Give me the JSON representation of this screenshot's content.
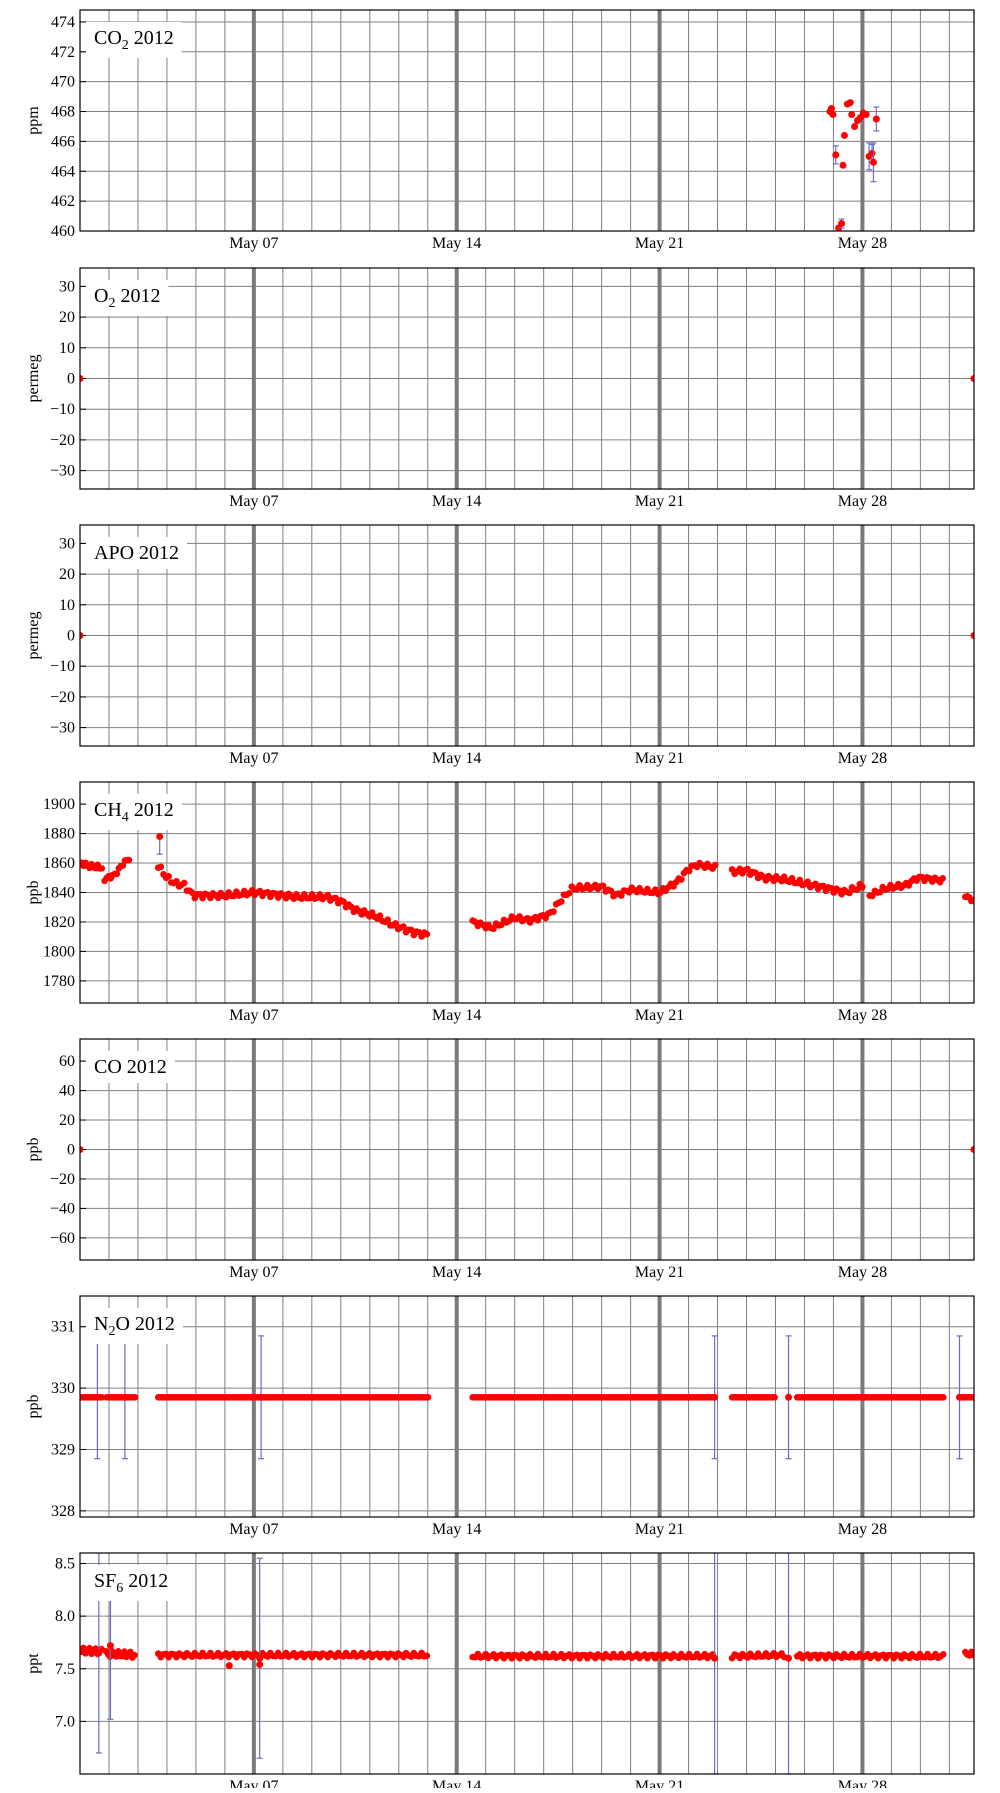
{
  "x_tick_labels": [
    "May 07",
    "May 14",
    "May 21",
    "May 28"
  ],
  "colors": {
    "marker": "#ff0000",
    "error_bar": "#6a6acd",
    "grid": "#808080",
    "week_line": "#7a7a7a",
    "frame": "#000000"
  },
  "chart_data": [
    {
      "type": "scatter",
      "title_main": "CO",
      "title_sub": "2",
      "title_tail": " 2012",
      "ylabel": "ppm",
      "xlim": [
        1.0,
        31.85
      ],
      "ylim": [
        460,
        474.8
      ],
      "yticks": [
        460,
        462,
        464,
        466,
        468,
        470,
        472,
        474
      ],
      "ytick_labels": [
        "460",
        "462",
        "464",
        "466",
        "468",
        "470",
        "472",
        "474"
      ],
      "xticks": [
        7,
        14,
        21,
        28
      ],
      "grid": true,
      "points": [
        {
          "x": 26.88,
          "y": 468.0
        },
        {
          "x": 26.93,
          "y": 468.2
        },
        {
          "x": 26.98,
          "y": 467.8
        },
        {
          "x": 27.08,
          "y": 465.1,
          "err": 0.6
        },
        {
          "x": 27.18,
          "y": 460.2
        },
        {
          "x": 27.28,
          "y": 460.5,
          "err": 0.3
        },
        {
          "x": 27.33,
          "y": 464.4
        },
        {
          "x": 27.38,
          "y": 466.4
        },
        {
          "x": 27.48,
          "y": 468.5
        },
        {
          "x": 27.58,
          "y": 468.6
        },
        {
          "x": 27.63,
          "y": 467.8
        },
        {
          "x": 27.73,
          "y": 467.0
        },
        {
          "x": 27.83,
          "y": 467.4
        },
        {
          "x": 27.93,
          "y": 467.6
        },
        {
          "x": 28.03,
          "y": 467.9
        },
        {
          "x": 28.13,
          "y": 467.8
        },
        {
          "x": 28.23,
          "y": 465.0,
          "err": 0.9
        },
        {
          "x": 28.33,
          "y": 465.2,
          "err": 0.6
        },
        {
          "x": 28.38,
          "y": 464.6,
          "err": 1.3
        },
        {
          "x": 28.48,
          "y": 467.5,
          "err": 0.8
        }
      ]
    },
    {
      "type": "scatter",
      "title_main": "O",
      "title_sub": "2",
      "title_tail": " 2012",
      "ylabel": "permeg",
      "xlim": [
        1.0,
        31.85
      ],
      "ylim": [
        -36,
        36
      ],
      "yticks": [
        -30,
        -20,
        -10,
        0,
        10,
        20,
        30
      ],
      "ytick_labels": [
        "−30",
        "−20",
        "−10",
        "0",
        "10",
        "20",
        "30"
      ],
      "xticks": [
        7,
        14,
        21,
        28
      ],
      "grid": true,
      "points": [
        {
          "x": 1.0,
          "y": 0
        },
        {
          "x": 31.85,
          "y": 0
        }
      ]
    },
    {
      "type": "scatter",
      "title_main": "APO 2012",
      "title_sub": "",
      "title_tail": "",
      "ylabel": "permeg",
      "xlim": [
        1.0,
        31.85
      ],
      "ylim": [
        -36,
        36
      ],
      "yticks": [
        -30,
        -20,
        -10,
        0,
        10,
        20,
        30
      ],
      "ytick_labels": [
        "−30",
        "−20",
        "−10",
        "0",
        "10",
        "20",
        "30"
      ],
      "xticks": [
        7,
        14,
        21,
        28
      ],
      "grid": true,
      "points": [
        {
          "x": 1.0,
          "y": 0
        },
        {
          "x": 31.85,
          "y": 0
        }
      ]
    },
    {
      "type": "scatter",
      "title_main": "CH",
      "title_sub": "4",
      "title_tail": " 2012",
      "ylabel": "ppb",
      "xlim": [
        1.0,
        31.85
      ],
      "ylim": [
        1765,
        1915
      ],
      "yticks": [
        1780,
        1800,
        1820,
        1840,
        1860,
        1880,
        1900
      ],
      "ytick_labels": [
        "1780",
        "1800",
        "1820",
        "1840",
        "1860",
        "1880",
        "1900"
      ],
      "xticks": [
        7,
        14,
        21,
        28
      ],
      "grid": true,
      "series": [
        {
          "x_start": 1.05,
          "x_end": 1.75,
          "step": 0.07,
          "trend": [
            [
              1.05,
              1860
            ],
            [
              1.3,
              1858
            ],
            [
              1.75,
              1857
            ]
          ],
          "amp": 1.5
        },
        {
          "x_start": 1.85,
          "x_end": 2.75,
          "step": 0.07,
          "trend": [
            [
              1.85,
              1849
            ],
            [
              2.2,
              1852
            ],
            [
              2.5,
              1860
            ],
            [
              2.75,
              1864
            ]
          ],
          "amp": 1.2
        },
        {
          "x_start": 3.7,
          "x_end": 13.05,
          "step": 0.09,
          "trend": [
            [
              3.7,
              1858
            ],
            [
              4.0,
              1850
            ],
            [
              4.3,
              1846
            ],
            [
              4.6,
              1845
            ],
            [
              4.9,
              1838
            ],
            [
              6.0,
              1838
            ],
            [
              7.0,
              1840
            ],
            [
              8.5,
              1837
            ],
            [
              9.5,
              1837
            ],
            [
              10.0,
              1834
            ],
            [
              10.5,
              1828
            ],
            [
              11.2,
              1824
            ],
            [
              11.8,
              1818
            ],
            [
              12.5,
              1813
            ],
            [
              13.05,
              1811
            ]
          ],
          "amp": 1.8
        },
        {
          "x_start": 14.55,
          "x_end": 22.95,
          "step": 0.09,
          "trend": [
            [
              14.55,
              1820
            ],
            [
              15.2,
              1816
            ],
            [
              16.0,
              1823
            ],
            [
              16.5,
              1821
            ],
            [
              17.2,
              1825
            ],
            [
              17.6,
              1835
            ],
            [
              18.0,
              1843
            ],
            [
              19.0,
              1844
            ],
            [
              19.5,
              1838
            ],
            [
              20.0,
              1842
            ],
            [
              20.5,
              1841
            ],
            [
              21.0,
              1840
            ],
            [
              21.6,
              1847
            ],
            [
              22.0,
              1856
            ],
            [
              22.3,
              1859
            ],
            [
              22.95,
              1857
            ]
          ],
          "amp": 1.6
        },
        {
          "x_start": 23.5,
          "x_end": 28.05,
          "step": 0.09,
          "trend": [
            [
              23.5,
              1854
            ],
            [
              24.0,
              1855
            ],
            [
              24.6,
              1850
            ],
            [
              25.3,
              1849
            ],
            [
              26.5,
              1844
            ],
            [
              27.4,
              1840
            ],
            [
              28.05,
              1845
            ]
          ],
          "amp": 1.8
        },
        {
          "x_start": 28.25,
          "x_end": 30.85,
          "step": 0.09,
          "trend": [
            [
              28.25,
              1838
            ],
            [
              28.8,
              1843
            ],
            [
              29.5,
              1845
            ],
            [
              29.9,
              1850
            ],
            [
              30.85,
              1848
            ]
          ],
          "amp": 1.6
        },
        {
          "x_start": 31.55,
          "x_end": 31.85,
          "step": 0.07,
          "trend": [
            [
              31.55,
              1838
            ],
            [
              31.85,
              1834
            ]
          ],
          "amp": 1.0
        }
      ],
      "points": [
        {
          "x": 3.75,
          "y": 1878,
          "err_low": 12
        }
      ]
    },
    {
      "type": "scatter",
      "title_main": "CO 2012",
      "title_sub": "",
      "title_tail": "",
      "ylabel": "ppb",
      "xlim": [
        1.0,
        31.85
      ],
      "ylim": [
        -75,
        75
      ],
      "yticks": [
        -60,
        -40,
        -20,
        0,
        20,
        40,
        60
      ],
      "ytick_labels": [
        "−60",
        "−40",
        "−20",
        "0",
        "20",
        "40",
        "60"
      ],
      "xticks": [
        7,
        14,
        21,
        28
      ],
      "grid": true,
      "points": [
        {
          "x": 1.0,
          "y": 0
        },
        {
          "x": 31.85,
          "y": 0
        }
      ]
    },
    {
      "type": "scatter",
      "title_main": "N",
      "title_sub": "2",
      "title_tail": "O 2012",
      "ylabel": "ppb",
      "xlim": [
        1.0,
        31.85
      ],
      "ylim": [
        327.9,
        331.5
      ],
      "yticks": [
        328,
        329,
        330,
        331
      ],
      "ytick_labels": [
        "328",
        "329",
        "330",
        "331"
      ],
      "xticks": [
        7,
        14,
        21,
        28
      ],
      "grid": true,
      "series": [
        {
          "x_start": 1.05,
          "x_end": 1.8,
          "step": 0.07,
          "trend": [
            [
              1.05,
              329.85
            ],
            [
              1.8,
              329.85
            ]
          ],
          "amp": 0
        },
        {
          "x_start": 1.92,
          "x_end": 2.95,
          "step": 0.07,
          "trend": [
            [
              1.92,
              329.85
            ],
            [
              2.95,
              329.85
            ]
          ],
          "amp": 0
        },
        {
          "x_start": 3.7,
          "x_end": 13.05,
          "step": 0.07,
          "trend": [
            [
              3.7,
              329.85
            ],
            [
              13.05,
              329.85
            ]
          ],
          "amp": 0
        },
        {
          "x_start": 14.55,
          "x_end": 22.9,
          "step": 0.07,
          "trend": [
            [
              14.55,
              329.85
            ],
            [
              22.9,
              329.85
            ]
          ],
          "amp": 0
        },
        {
          "x_start": 23.5,
          "x_end": 25.0,
          "step": 0.07,
          "trend": [
            [
              23.5,
              329.85
            ],
            [
              25.0,
              329.85
            ]
          ],
          "amp": 0
        },
        {
          "x_start": 25.75,
          "x_end": 30.85,
          "step": 0.07,
          "trend": [
            [
              25.75,
              329.85
            ],
            [
              30.85,
              329.85
            ]
          ],
          "amp": 0
        },
        {
          "x_start": 31.35,
          "x_end": 31.85,
          "step": 0.07,
          "trend": [
            [
              31.35,
              329.85
            ],
            [
              31.85,
              329.85
            ]
          ],
          "amp": 0
        }
      ],
      "points": [
        {
          "x": 1.6,
          "y": 329.85,
          "err": 1.0
        },
        {
          "x": 2.55,
          "y": 329.85,
          "err": 1.0
        },
        {
          "x": 7.25,
          "y": 329.85,
          "err": 1.0
        },
        {
          "x": 22.9,
          "y": 329.85,
          "err": 1.0
        },
        {
          "x": 25.45,
          "y": 329.85,
          "err": 1.0
        },
        {
          "x": 31.35,
          "y": 329.85,
          "err": 1.0
        }
      ]
    },
    {
      "type": "scatter",
      "title_main": "SF",
      "title_sub": "6",
      "title_tail": " 2012",
      "ylabel": "ppt",
      "xlim": [
        1.0,
        31.85
      ],
      "ylim": [
        6.5,
        8.6
      ],
      "yticks": [
        7.0,
        7.5,
        8.0,
        8.5
      ],
      "ytick_labels": [
        "7.0",
        "7.5",
        "8.0",
        "8.5"
      ],
      "xticks": [
        7,
        14,
        21,
        28
      ],
      "grid": true,
      "series": [
        {
          "x_start": 1.05,
          "x_end": 1.75,
          "step": 0.07,
          "trend": [
            [
              1.05,
              7.67
            ],
            [
              1.75,
              7.67
            ]
          ],
          "amp": 0.03
        },
        {
          "x_start": 1.9,
          "x_end": 2.9,
          "step": 0.07,
          "trend": [
            [
              1.9,
              7.64
            ],
            [
              2.9,
              7.63
            ]
          ],
          "amp": 0.03
        },
        {
          "x_start": 3.7,
          "x_end": 13.05,
          "step": 0.09,
          "trend": [
            [
              3.7,
              7.63
            ],
            [
              13.05,
              7.63
            ]
          ],
          "amp": 0.02
        },
        {
          "x_start": 14.55,
          "x_end": 22.9,
          "step": 0.09,
          "trend": [
            [
              14.55,
              7.62
            ],
            [
              22.9,
              7.62
            ]
          ],
          "amp": 0.02
        },
        {
          "x_start": 23.5,
          "x_end": 25.3,
          "step": 0.09,
          "trend": [
            [
              23.5,
              7.62
            ],
            [
              25.3,
              7.63
            ]
          ],
          "amp": 0.02
        },
        {
          "x_start": 25.75,
          "x_end": 30.85,
          "step": 0.09,
          "trend": [
            [
              25.75,
              7.62
            ],
            [
              30.85,
              7.62
            ]
          ],
          "amp": 0.02
        },
        {
          "x_start": 31.55,
          "x_end": 31.85,
          "step": 0.07,
          "trend": [
            [
              31.55,
              7.64
            ],
            [
              31.85,
              7.64
            ]
          ],
          "amp": 0.02
        }
      ],
      "points": [
        {
          "x": 1.65,
          "y": 7.65,
          "err": 0.95
        },
        {
          "x": 2.05,
          "y": 7.72,
          "err": 0.7
        },
        {
          "x": 7.2,
          "y": 7.6,
          "err": 0.95
        },
        {
          "x": 6.15,
          "y": 7.53
        },
        {
          "x": 7.2,
          "y": 7.54
        },
        {
          "x": 22.9,
          "y": 7.6,
          "err": 1.1
        },
        {
          "x": 25.45,
          "y": 7.6,
          "err": 1.1
        }
      ]
    }
  ]
}
